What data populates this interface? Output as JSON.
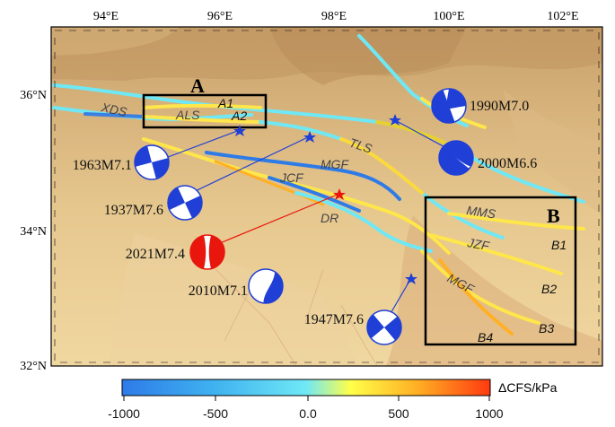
{
  "axes": {
    "lon_ticks": [
      "94°E",
      "96°E",
      "98°E",
      "100°E",
      "102°E"
    ],
    "lat_ticks": [
      "36°N",
      "34°N",
      "32°N"
    ]
  },
  "boxes": [
    {
      "label": "A"
    },
    {
      "label": "B"
    }
  ],
  "fault_labels": [
    "XDS",
    "ALS",
    "A1",
    "A2",
    "TLS",
    "MGF",
    "JCF",
    "DR",
    "MMS",
    "JZF",
    "MGF",
    "B1",
    "B2",
    "B3",
    "B4"
  ],
  "earthquakes": [
    {
      "label": "1990M7.0",
      "color": "#1f3fd6"
    },
    {
      "label": "2000M6.6",
      "color": "#1f3fd6"
    },
    {
      "label": "1963M7.1",
      "color": "#1f3fd6"
    },
    {
      "label": "1937M7.6",
      "color": "#1f3fd6"
    },
    {
      "label": "2021M7.4",
      "color": "#e8160c"
    },
    {
      "label": "2010M7.1",
      "color": "#1f3fd6"
    },
    {
      "label": "1947M7.6",
      "color": "#1f3fd6"
    }
  ],
  "colorbar": {
    "title": "ΔCFS/kPa",
    "ticks": [
      "-1000",
      "-500",
      "0.0",
      "500",
      "1000"
    ],
    "colors": [
      "#2e7be8",
      "#3fb2f0",
      "#6fe8f6",
      "#ffff4a",
      "#ffb024",
      "#ff3a10"
    ]
  }
}
